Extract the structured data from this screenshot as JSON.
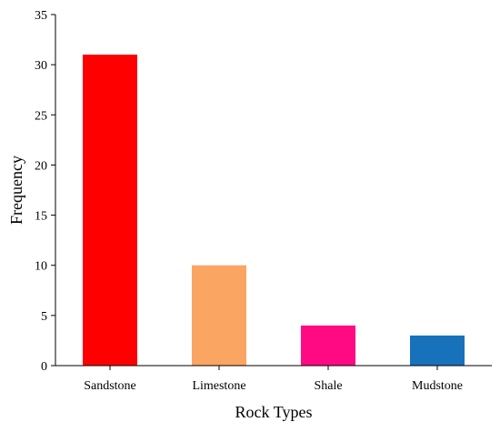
{
  "chart_data": {
    "type": "bar",
    "title": "",
    "xlabel": "Rock Types",
    "ylabel": "Frequency",
    "categories": [
      "Sandstone",
      "Limestone",
      "Shale",
      "Mudstone"
    ],
    "values": [
      31,
      10,
      4,
      3
    ],
    "colors": [
      "#ff0000",
      "#fba563",
      "#ff0a83",
      "#1772bb"
    ],
    "ylim": [
      0,
      35
    ],
    "yticks": [
      0,
      5,
      10,
      15,
      20,
      25,
      30,
      35
    ],
    "grid": false,
    "legend": "none"
  }
}
